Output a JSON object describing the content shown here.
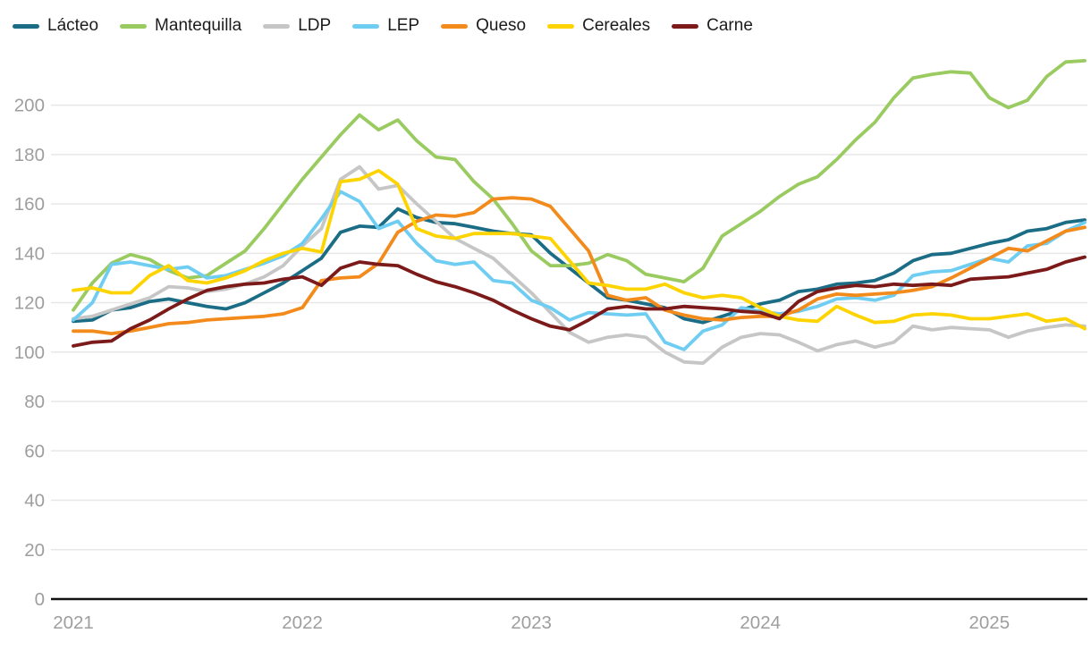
{
  "style": {
    "background": "#ffffff",
    "gridline_color": "#e7e7e7",
    "axis_line_color": "#111111",
    "tick_label_color": "#9e9e9e",
    "legend_text_color": "#1c1c1c"
  },
  "chart_data": {
    "type": "line",
    "title": "",
    "xlabel": "",
    "ylabel": "",
    "grid": "horizontal",
    "legend_position": "top-left",
    "ylim": [
      0,
      225
    ],
    "y_ticks": [
      0,
      20,
      40,
      60,
      80,
      100,
      120,
      140,
      160,
      180,
      200
    ],
    "x_tick_labels": [
      "2021",
      "2022",
      "2023",
      "2024",
      "2025"
    ],
    "x": [
      "2021-01",
      "2021-02",
      "2021-03",
      "2021-04",
      "2021-05",
      "2021-06",
      "2021-07",
      "2021-08",
      "2021-09",
      "2021-10",
      "2021-11",
      "2021-12",
      "2022-01",
      "2022-02",
      "2022-03",
      "2022-04",
      "2022-05",
      "2022-06",
      "2022-07",
      "2022-08",
      "2022-09",
      "2022-10",
      "2022-11",
      "2022-12",
      "2023-01",
      "2023-02",
      "2023-03",
      "2023-04",
      "2023-05",
      "2023-06",
      "2023-07",
      "2023-08",
      "2023-09",
      "2023-10",
      "2023-11",
      "2023-12",
      "2024-01",
      "2024-02",
      "2024-03",
      "2024-04",
      "2024-05",
      "2024-06",
      "2024-07",
      "2024-08",
      "2024-09",
      "2024-10",
      "2024-11",
      "2024-12",
      "2025-01",
      "2025-02",
      "2025-03",
      "2025-04",
      "2025-05",
      "2025-06"
    ],
    "series": [
      {
        "name": "Lácteo",
        "slug": "lacteo",
        "color": "#1b6d86",
        "values": [
          112.5,
          113,
          117,
          118,
          120.5,
          121.5,
          120,
          118.5,
          117.5,
          120,
          124,
          128,
          133,
          138,
          148.5,
          151,
          150.5,
          158,
          154.5,
          152.5,
          152,
          150.5,
          149,
          148,
          147.5,
          140,
          134,
          128,
          122,
          121,
          119.5,
          118,
          113.5,
          112,
          114.5,
          117,
          119.5,
          121,
          124.5,
          125.5,
          127.5,
          128,
          129,
          132,
          137,
          139.5,
          140,
          142,
          144,
          145.5,
          149,
          150,
          152.5,
          153.5
        ]
      },
      {
        "name": "Mantequilla",
        "slug": "mantequilla",
        "color": "#9acb60",
        "values": [
          117,
          128,
          136,
          139.5,
          137.5,
          133,
          130,
          131,
          136,
          141,
          150,
          160,
          170,
          179,
          188,
          196,
          190,
          194,
          185.5,
          179,
          178,
          169,
          162,
          152,
          141,
          135,
          135,
          136,
          139.5,
          137,
          131.5,
          130,
          128.5,
          134,
          147,
          152,
          157,
          163,
          168,
          171,
          178,
          186,
          193,
          203,
          211,
          212.5,
          213.5,
          213,
          203,
          199,
          202,
          211.5,
          217.5,
          218
        ]
      },
      {
        "name": "LDP",
        "slug": "ldp",
        "color": "#c6c6c6",
        "values": [
          113.5,
          114.5,
          117,
          119.5,
          122,
          126.5,
          126,
          124.5,
          125.5,
          127.5,
          130.5,
          135,
          143,
          150,
          170,
          175,
          166,
          167.5,
          160,
          153,
          146,
          142,
          138,
          131,
          124,
          116,
          108,
          104,
          106,
          107,
          106,
          100,
          96,
          95.5,
          102,
          106,
          107.5,
          107,
          104,
          100.5,
          103,
          104.5,
          102,
          104,
          110.5,
          109,
          110,
          109.5,
          109,
          106,
          108.5,
          110,
          111,
          110.5
        ]
      },
      {
        "name": "LEP",
        "slug": "lep",
        "color": "#6fcdf2",
        "values": [
          113,
          120,
          135.5,
          136.5,
          135,
          133.5,
          134.5,
          130,
          131,
          133.5,
          136,
          139,
          144,
          154,
          165,
          161,
          150,
          153,
          144,
          137,
          135.5,
          136.5,
          129,
          128,
          121,
          118,
          113,
          116,
          115.5,
          115,
          115.5,
          104,
          101,
          108.5,
          111,
          118,
          116.5,
          115.5,
          116.5,
          118.5,
          121.5,
          122,
          121,
          123,
          131,
          132.5,
          133,
          135.5,
          138,
          136.5,
          143,
          144,
          149,
          152.5
        ]
      },
      {
        "name": "Queso",
        "slug": "queso",
        "color": "#f38b1c",
        "values": [
          108.5,
          108.5,
          107.5,
          108.5,
          110,
          111.5,
          112,
          113,
          113.5,
          114,
          114.5,
          115.5,
          118,
          129,
          130,
          130.5,
          136,
          148.5,
          153,
          155.5,
          155,
          156.5,
          162,
          162.5,
          162,
          159,
          150,
          141,
          123,
          121,
          122,
          117,
          115,
          113.5,
          113,
          114,
          114.5,
          114.5,
          117,
          121.5,
          123.5,
          123,
          123.5,
          124,
          125,
          126.5,
          130,
          134,
          138,
          142,
          141,
          145,
          149,
          150.5
        ]
      },
      {
        "name": "Cereales",
        "slug": "cereales",
        "color": "#fdd400",
        "values": [
          125,
          126,
          124,
          124,
          131,
          135,
          129,
          128,
          130,
          133,
          137,
          140,
          142,
          140.5,
          169,
          170,
          173.5,
          168,
          150,
          147,
          146,
          148,
          148,
          148,
          147,
          146,
          137,
          128,
          127,
          125.5,
          125.5,
          127.5,
          124,
          122,
          123,
          122,
          118,
          114.5,
          113,
          112.5,
          118.5,
          115,
          112,
          112.5,
          115,
          115.5,
          115,
          113.5,
          113.5,
          114.5,
          115.5,
          112.5,
          113.5,
          109.5
        ]
      },
      {
        "name": "Carne",
        "slug": "carne",
        "color": "#7c1a1a",
        "values": [
          102.5,
          104,
          104.5,
          109.5,
          113,
          117.5,
          121.5,
          125,
          126.5,
          127.5,
          128,
          129.5,
          130.5,
          127,
          134,
          136.5,
          135.5,
          135,
          131.5,
          128.5,
          126.5,
          124,
          121,
          117,
          113.5,
          110.5,
          109,
          113,
          117.5,
          118.5,
          117.5,
          117.5,
          118.5,
          118,
          117.5,
          116.5,
          116,
          113.5,
          120.5,
          124.5,
          126,
          127,
          126.5,
          127.5,
          127,
          127.5,
          127,
          129.5,
          130,
          130.5,
          132,
          133.5,
          136.5,
          138.5
        ]
      }
    ]
  }
}
